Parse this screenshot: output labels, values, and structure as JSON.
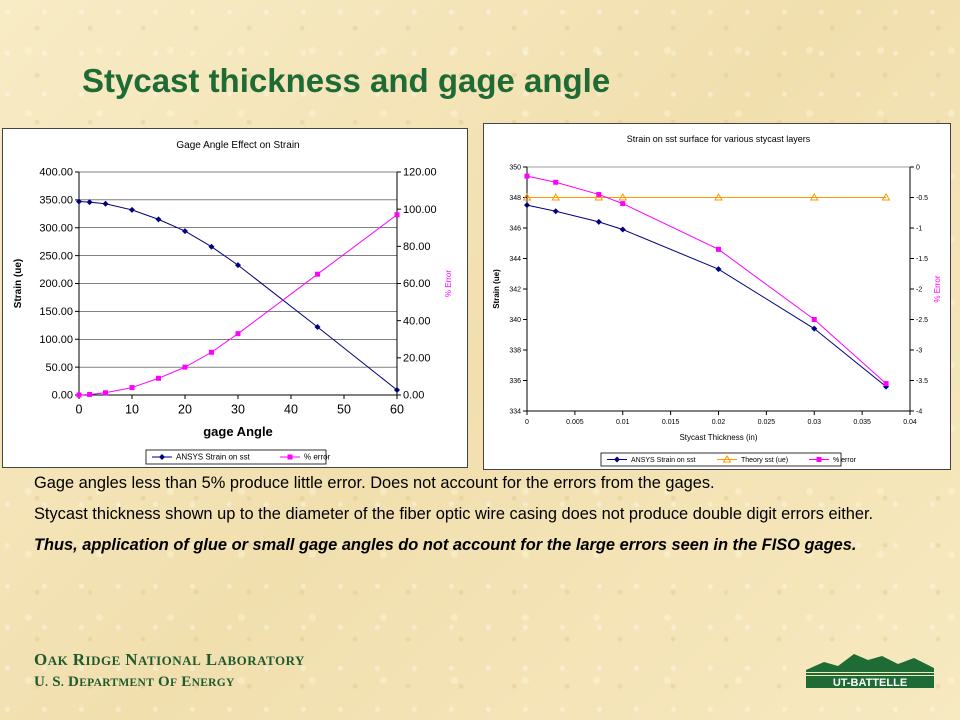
{
  "slide": {
    "title": "Stycast thickness and gage angle",
    "paragraphs": [
      "Gage angles less than 5% produce little error. Does not account for the errors from the gages.",
      "Stycast thickness shown up to the diameter of the fiber optic wire casing does not produce double digit errors either.",
      "Thus, application of glue or small gage angles do not account for the large errors seen in the FISO gages."
    ],
    "footer": {
      "lab_line": "Oak Ridge National Laboratory",
      "doe_line": "U. S. Department of Energy"
    },
    "logo_text": "UT-BATTELLE",
    "colors": {
      "title": "#1f6b35",
      "footer": "#1f5a2f",
      "background": "#f6e8bc"
    }
  },
  "chart_data": [
    {
      "type": "line",
      "title": "Gage Angle Effect on Strain",
      "xlabel": "gage Angle",
      "ylabel": "Strain (ue)",
      "y2label": "% Error",
      "xlim": [
        0,
        60
      ],
      "ylim": [
        0,
        400
      ],
      "y2lim": [
        0,
        120
      ],
      "xticks": [
        "0",
        "10",
        "20",
        "30",
        "40",
        "50",
        "60"
      ],
      "yticks": [
        "0.00",
        "50.00",
        "100.00",
        "150.00",
        "200.00",
        "250.00",
        "300.00",
        "350.00",
        "400.00"
      ],
      "y2ticks": [
        "0.00",
        "20.00",
        "40.00",
        "60.00",
        "80.00",
        "100.00",
        "120.00"
      ],
      "grid": true,
      "legend": "bottom",
      "series": [
        {
          "name": "ANSYS Strain on sst",
          "axis": "left",
          "color": "#000080",
          "marker": "diamond",
          "x": [
            0,
            2,
            5,
            10,
            15,
            20,
            25,
            30,
            45,
            60
          ],
          "y": [
            347,
            346,
            343,
            332,
            315,
            294,
            266,
            233,
            122,
            9
          ]
        },
        {
          "name": "% error",
          "axis": "right",
          "color": "#ff00ff",
          "marker": "square",
          "x": [
            0,
            2,
            5,
            10,
            15,
            20,
            25,
            30,
            45,
            60
          ],
          "y": [
            0,
            0.3,
            1.2,
            4,
            9,
            15,
            23,
            33,
            65,
            97
          ]
        }
      ]
    },
    {
      "type": "line",
      "title": "Strain on sst surface for various stycast layers",
      "xlabel": "Stycast Thickness (in)",
      "ylabel": "Strain (ue)",
      "y2label": "% Error",
      "xlim": [
        0,
        0.04
      ],
      "ylim": [
        334,
        350
      ],
      "y2lim": [
        -4,
        0
      ],
      "xticks": [
        "0",
        "0.005",
        "0.01",
        "0.015",
        "0.02",
        "0.025",
        "0.03",
        "0.035",
        "0.04"
      ],
      "yticks": [
        "334",
        "336",
        "338",
        "340",
        "342",
        "344",
        "346",
        "348",
        "350"
      ],
      "y2ticks": [
        "-4",
        "-3.5",
        "-3",
        "-2.5",
        "-2",
        "-1.5",
        "-1",
        "-0.5",
        "0"
      ],
      "grid": false,
      "legend": "bottom",
      "series": [
        {
          "name": "ANSYS Strain on sst",
          "axis": "left",
          "color": "#000080",
          "marker": "diamond",
          "x": [
            0,
            0.003,
            0.0075,
            0.01,
            0.02,
            0.03,
            0.0375
          ],
          "y": [
            347.5,
            347.1,
            346.4,
            345.9,
            343.3,
            339.4,
            335.6
          ]
        },
        {
          "name": "Theory sst (ue)",
          "axis": "left",
          "color": "#ff9900",
          "marker": "triangle",
          "x": [
            0,
            0.003,
            0.0075,
            0.01,
            0.02,
            0.03,
            0.0375
          ],
          "y": [
            348,
            348,
            348,
            348,
            348,
            348,
            348
          ]
        },
        {
          "name": "% error",
          "axis": "right",
          "color": "#ff00ff",
          "marker": "square",
          "x": [
            0,
            0.003,
            0.0075,
            0.01,
            0.02,
            0.03,
            0.0375
          ],
          "y": [
            -0.15,
            -0.25,
            -0.45,
            -0.6,
            -1.35,
            -2.5,
            -3.55
          ]
        }
      ]
    }
  ]
}
